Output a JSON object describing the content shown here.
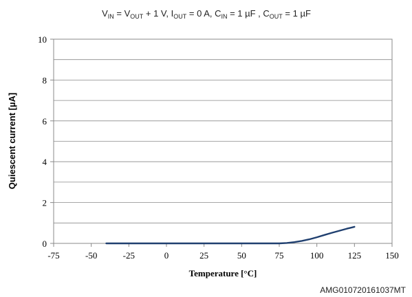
{
  "chart_data": {
    "type": "line",
    "title_parts": [
      {
        "t": "V"
      },
      {
        "t": "IN",
        "sub": true
      },
      {
        "t": " = V"
      },
      {
        "t": "OUT",
        "sub": true
      },
      {
        "t": " + 1 V, I"
      },
      {
        "t": "OUT",
        "sub": true
      },
      {
        "t": " = 0 A, C"
      },
      {
        "t": "IN",
        "sub": true
      },
      {
        "t": " = 1 µF , C"
      },
      {
        "t": "OUT",
        "sub": true
      },
      {
        "t": " = 1 µF"
      }
    ],
    "xlabel": "Temperature [°C]",
    "ylabel": "Quiescent current [µA]",
    "xlim": [
      -75,
      150
    ],
    "ylim": [
      0,
      10
    ],
    "x_ticks": [
      -75,
      -50,
      -25,
      0,
      25,
      50,
      75,
      100,
      125,
      150
    ],
    "y_ticks": [
      0,
      2,
      4,
      6,
      8,
      10
    ],
    "y_minor_gridlines": [
      1,
      3,
      5,
      7,
      9
    ],
    "grid": "horizontal",
    "series": [
      {
        "color": "#1f3f6f",
        "x": [
          -40,
          -25,
          0,
          25,
          50,
          75,
          80,
          85,
          90,
          95,
          100,
          105,
          110,
          115,
          120,
          125
        ],
        "y": [
          0,
          0,
          0,
          0,
          0,
          0,
          0.02,
          0.06,
          0.12,
          0.2,
          0.3,
          0.41,
          0.52,
          0.62,
          0.72,
          0.81
        ]
      }
    ],
    "footnote": "AMG010720161037MT"
  }
}
